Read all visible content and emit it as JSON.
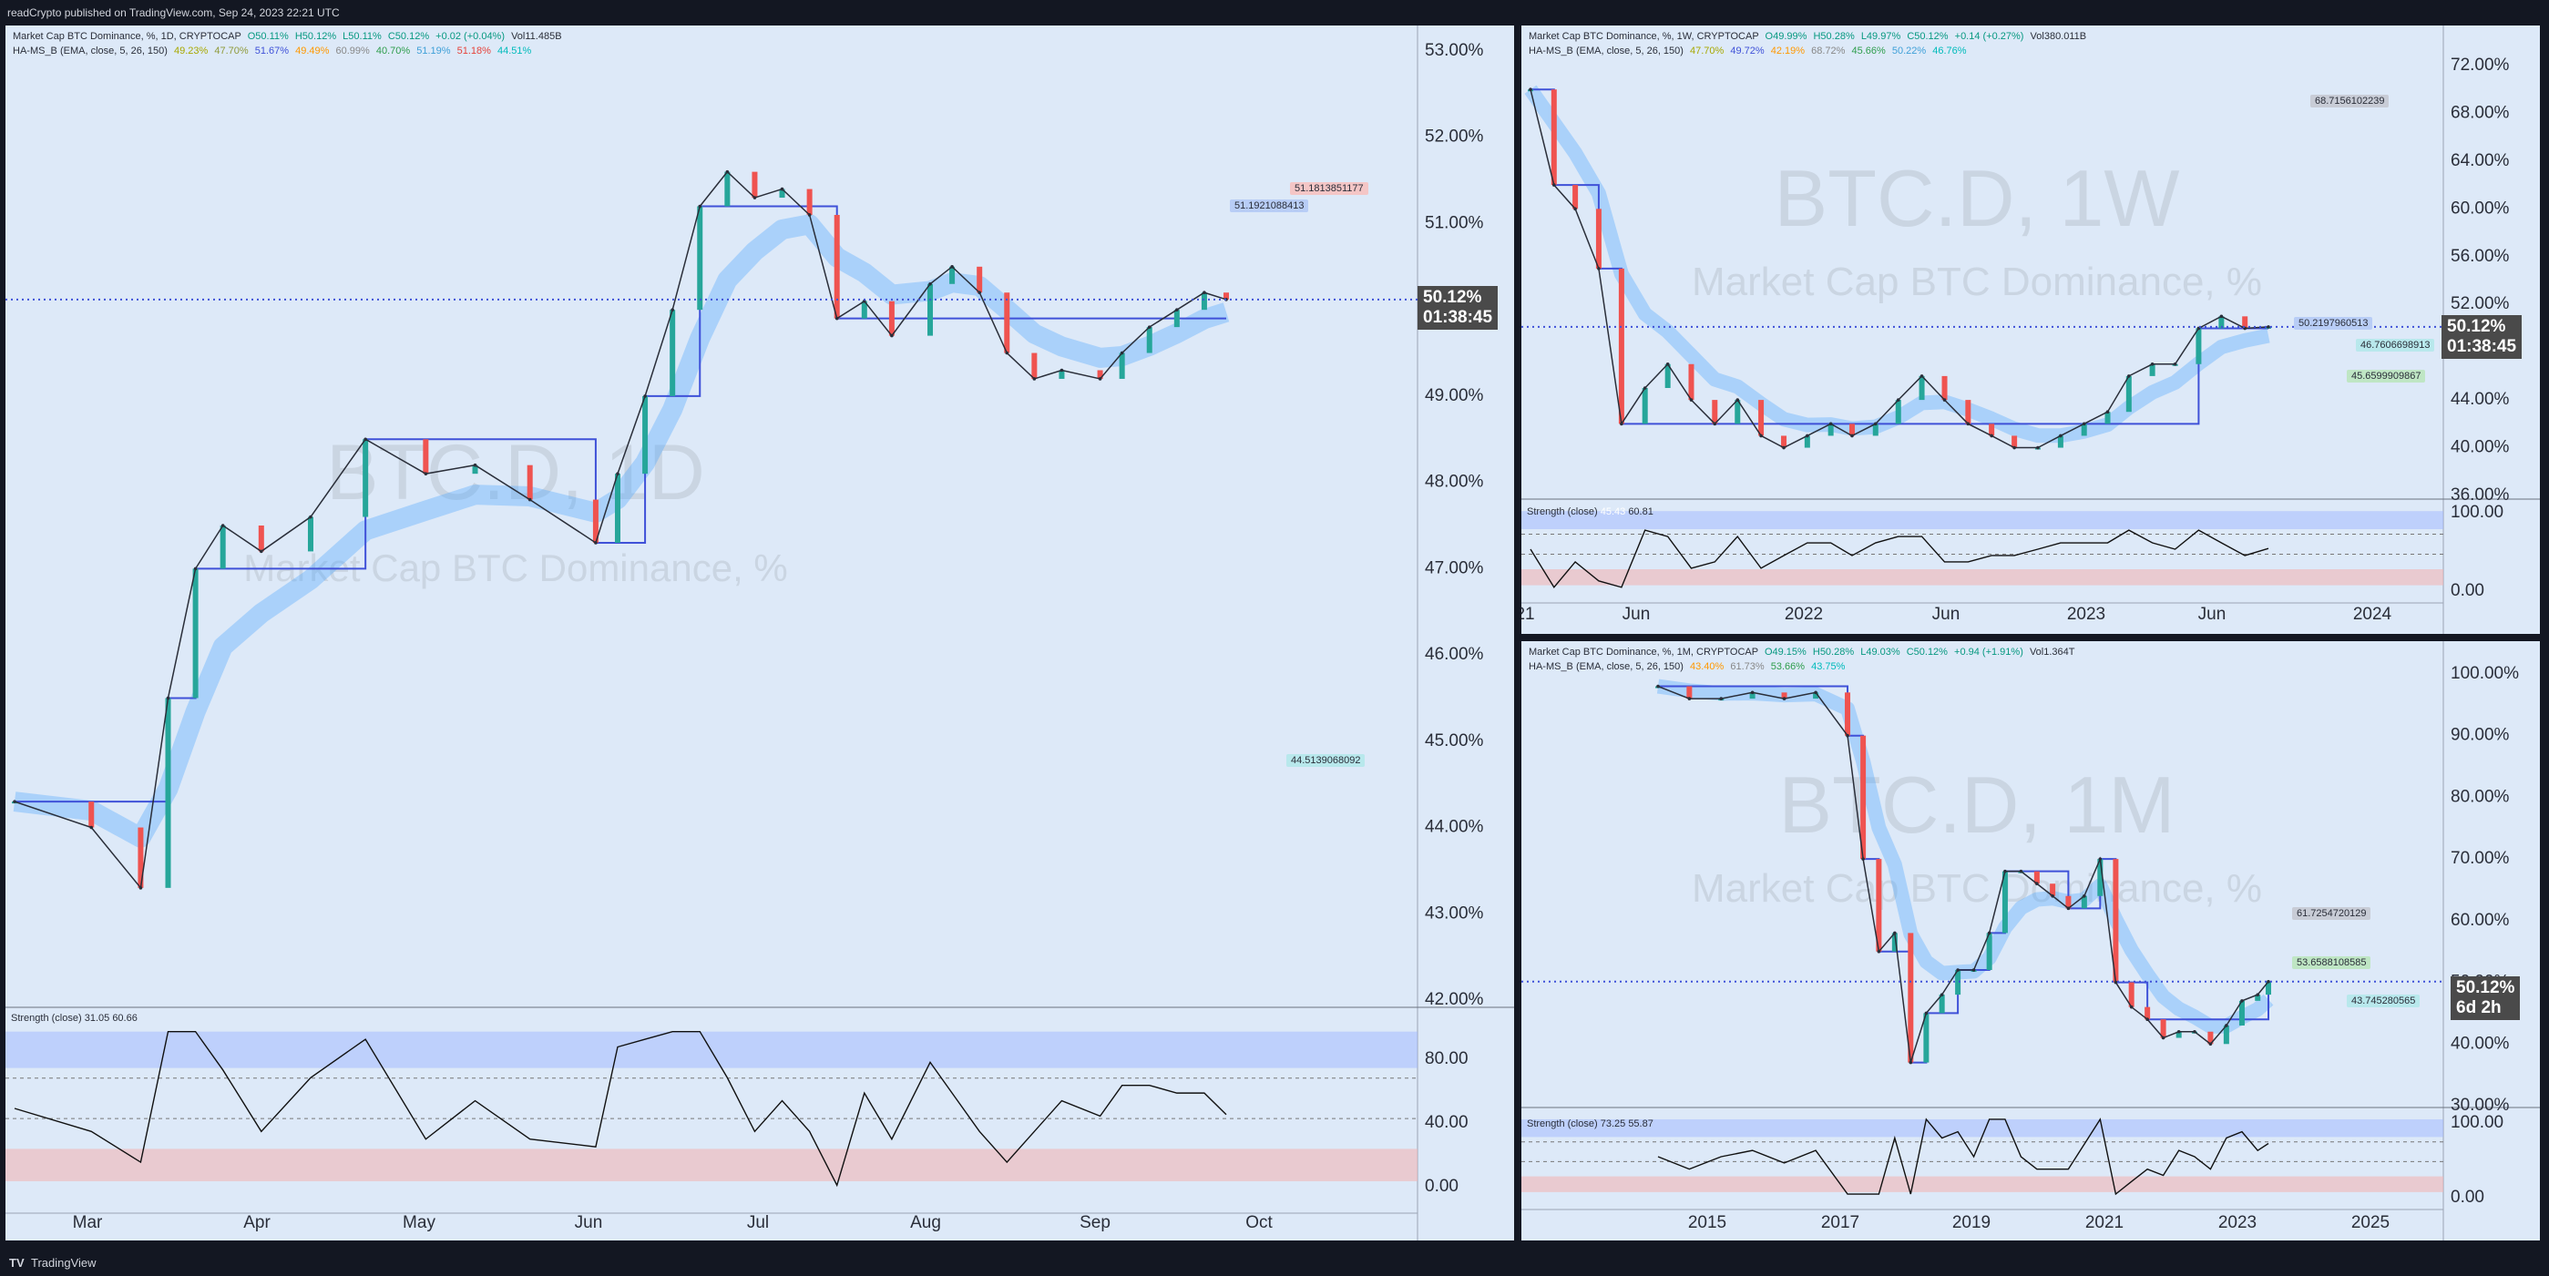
{
  "header": {
    "published": "readCrypto published on TradingView.com, Sep 24, 2023 22:21 UTC"
  },
  "footer": {
    "logo": "TV",
    "brand": "TradingView"
  },
  "colors": {
    "bg": "#dde9f8",
    "frame": "#131722",
    "blue": "#3f51d8",
    "orange": "#ff9800",
    "red": "#e6433b",
    "green": "#22e03a",
    "olive": "#8f9a3a",
    "yellow": "#d8dc6a",
    "skyblue": "#4a90e2",
    "maroon": "#8e1b4a"
  },
  "panels": [
    {
      "id": "daily",
      "legend1": {
        "name": "Market Cap BTC Dominance, %, 1D, CRYPTOCAP",
        "o": "O50.11%",
        "h": "H50.12%",
        "l": "L50.11%",
        "c": "C50.12%",
        "chg": "+0.02 (+0.04%)",
        "vol": "Vol11.485B"
      },
      "legend2": {
        "name": "HA-MS_B (EMA, close, 5, 26, 150)",
        "vals": [
          "49.23%",
          "47.70%",
          "51.67%",
          "49.49%",
          "60.99%",
          "40.70%",
          "51.19%",
          "51.18%",
          "44.51%"
        ]
      },
      "watermark": {
        "symbol": "BTC.D, 1D",
        "desc": "Market Cap BTC Dominance, %"
      },
      "price_tag": {
        "value": "50.12%",
        "time": "01:38:45"
      },
      "labels": [
        "51.1813851177",
        "51.1921088413",
        "44.5139068092"
      ],
      "strength_legend": {
        "name": "Strength (close)",
        "v1": "31.05",
        "v2": "60.66"
      }
    },
    {
      "id": "weekly",
      "legend1": {
        "name": "Market Cap BTC Dominance, %, 1W, CRYPTOCAP",
        "o": "O49.99%",
        "h": "H50.28%",
        "l": "L49.97%",
        "c": "C50.12%",
        "chg": "+0.14 (+0.27%)",
        "vol": "Vol380.011B"
      },
      "legend2": {
        "name": "HA-MS_B (EMA, close, 5, 26, 150)",
        "vals": [
          "47.70%",
          "49.72%",
          "42.19%",
          "68.72%",
          "45.66%",
          "50.22%",
          "46.76%"
        ]
      },
      "watermark": {
        "symbol": "BTC.D, 1W",
        "desc": "Market Cap BTC Dominance, %"
      },
      "price_tag": {
        "value": "50.12%",
        "time": "01:38:45"
      },
      "labels": [
        "68.7156102239",
        "50.2197960513",
        "46.7606698913",
        "45.6599909867"
      ],
      "strength_legend": {
        "name": "Strength (close)",
        "v1": "45.43",
        "v2": "60.81"
      }
    },
    {
      "id": "monthly",
      "legend1": {
        "name": "Market Cap BTC Dominance, %, 1M, CRYPTOCAP",
        "o": "O49.15%",
        "h": "H50.28%",
        "l": "L49.03%",
        "c": "C50.12%",
        "chg": "+0.94 (+1.91%)",
        "vol": "Vol1.364T"
      },
      "legend2": {
        "name": "HA-MS_B (EMA, close, 5, 26, 150)",
        "vals": [
          "43.40%",
          "61.73%",
          "53.66%",
          "43.75%"
        ]
      },
      "watermark": {
        "symbol": "BTC.D, 1M",
        "desc": "Market Cap BTC Dominance, %"
      },
      "price_tag": {
        "value": "50.12%",
        "time": "6d 2h"
      },
      "labels": [
        "61.7254720129",
        "53.6588108585",
        "43.745280565"
      ],
      "strength_legend": {
        "name": "Strength (close)",
        "v1": "73.25",
        "v2": "55.87"
      }
    }
  ],
  "chart_data": [
    {
      "type": "line",
      "title": "BTC.D, 1D",
      "xlabel": "",
      "ylabel": "",
      "x_ticks": [
        "Mar",
        "Apr",
        "May",
        "Jun",
        "Jul",
        "Aug",
        "Sep",
        "Oct"
      ],
      "y_ticks": [
        "53.00%",
        "52.00%",
        "51.00%",
        "50.00%",
        "49.00%",
        "48.00%",
        "47.00%",
        "46.00%",
        "45.00%",
        "44.00%",
        "43.00%",
        "42.00%"
      ],
      "ylim": [
        41.9,
        53.2
      ],
      "strength_ticks": [
        "80.00",
        "40.00",
        "0.00"
      ],
      "series": [
        {
          "name": "close",
          "x": [
            "2023-02-15",
            "2023-03-01",
            "2023-03-10",
            "2023-03-15",
            "2023-03-20",
            "2023-03-25",
            "2023-04-01",
            "2023-04-10",
            "2023-04-20",
            "2023-05-01",
            "2023-05-10",
            "2023-05-20",
            "2023-06-01",
            "2023-06-05",
            "2023-06-10",
            "2023-06-15",
            "2023-06-20",
            "2023-06-25",
            "2023-06-30",
            "2023-07-05",
            "2023-07-10",
            "2023-07-15",
            "2023-07-20",
            "2023-07-25",
            "2023-08-01",
            "2023-08-05",
            "2023-08-10",
            "2023-08-15",
            "2023-08-20",
            "2023-08-25",
            "2023-09-01",
            "2023-09-05",
            "2023-09-10",
            "2023-09-15",
            "2023-09-20",
            "2023-09-24"
          ],
          "values": [
            44.3,
            44.0,
            43.3,
            45.5,
            47.0,
            47.5,
            47.2,
            47.6,
            48.5,
            48.1,
            48.2,
            47.8,
            47.3,
            48.1,
            49.0,
            50.0,
            51.2,
            51.6,
            51.3,
            51.4,
            51.1,
            49.9,
            50.1,
            49.7,
            50.3,
            50.5,
            50.2,
            49.5,
            49.2,
            49.3,
            49.2,
            49.5,
            49.8,
            50.0,
            50.2,
            50.12
          ]
        }
      ]
    },
    {
      "type": "line",
      "title": "BTC.D, 1W",
      "xlabel": "",
      "ylabel": "",
      "x_ticks": [
        "21",
        "Jun",
        "2022",
        "Jun",
        "2023",
        "Jun",
        "2024"
      ],
      "y_ticks": [
        "72.00%",
        "68.00%",
        "64.00%",
        "60.00%",
        "56.00%",
        "52.00%",
        "48.00%",
        "44.00%",
        "40.00%",
        "36.00%"
      ],
      "ylim": [
        35,
        74
      ],
      "strength_ticks": [
        "100.00",
        "0.00"
      ],
      "series": [
        {
          "name": "close",
          "x": [
            "2021-01",
            "2021-02",
            "2021-03",
            "2021-04",
            "2021-05",
            "2021-06",
            "2021-07",
            "2021-08",
            "2021-09",
            "2021-10",
            "2021-11",
            "2021-12",
            "2022-01",
            "2022-02",
            "2022-03",
            "2022-04",
            "2022-05",
            "2022-06",
            "2022-07",
            "2022-08",
            "2022-09",
            "2022-10",
            "2022-11",
            "2022-12",
            "2023-01",
            "2023-02",
            "2023-03",
            "2023-04",
            "2023-05",
            "2023-06",
            "2023-07",
            "2023-08",
            "2023-09"
          ],
          "values": [
            70,
            62,
            60,
            55,
            42,
            45,
            47,
            44,
            42,
            44,
            41,
            40,
            41,
            42,
            41,
            42,
            44,
            46,
            44,
            42,
            41,
            40,
            40,
            41,
            42,
            43,
            46,
            47,
            47,
            50,
            51,
            50,
            50.12
          ]
        }
      ]
    },
    {
      "type": "line",
      "title": "BTC.D, 1M",
      "xlabel": "",
      "ylabel": "",
      "x_ticks": [
        "2015",
        "2017",
        "2019",
        "2021",
        "2023",
        "2025"
      ],
      "y_ticks": [
        "100.00%",
        "90.00%",
        "80.00%",
        "70.00%",
        "60.00%",
        "50.00%",
        "40.00%",
        "30.00%"
      ],
      "ylim": [
        29,
        104
      ],
      "strength_ticks": [
        "100.00",
        "0.00"
      ],
      "series": [
        {
          "name": "close",
          "x": [
            "2014-01",
            "2014-07",
            "2015-01",
            "2015-07",
            "2016-01",
            "2016-07",
            "2017-01",
            "2017-04",
            "2017-07",
            "2017-10",
            "2018-01",
            "2018-04",
            "2018-07",
            "2018-10",
            "2019-01",
            "2019-04",
            "2019-07",
            "2019-10",
            "2020-01",
            "2020-04",
            "2020-07",
            "2020-10",
            "2021-01",
            "2021-04",
            "2021-07",
            "2021-10",
            "2022-01",
            "2022-04",
            "2022-07",
            "2022-10",
            "2023-01",
            "2023-04",
            "2023-07",
            "2023-09"
          ],
          "values": [
            98,
            96,
            96,
            97,
            96,
            97,
            90,
            70,
            55,
            58,
            37,
            45,
            48,
            52,
            52,
            58,
            68,
            68,
            66,
            64,
            62,
            64,
            70,
            50,
            46,
            44,
            41,
            42,
            42,
            40,
            43,
            47,
            48,
            50.12
          ]
        }
      ]
    }
  ]
}
